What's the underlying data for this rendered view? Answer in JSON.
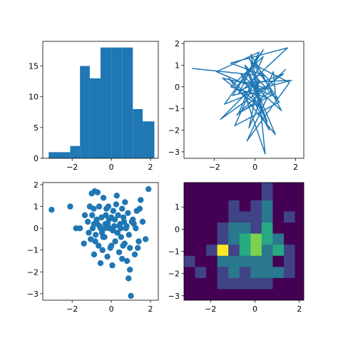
{
  "colors": {
    "series": "#1f77b4",
    "axes": "#000000",
    "background": "#ffffff",
    "colormap": "viridis"
  },
  "chart_data": [
    {
      "type": "bar",
      "subtype": "histogram",
      "bins": [
        {
          "x0": -3.2,
          "x1": -2.1,
          "count": 1
        },
        {
          "x0": -2.1,
          "x1": -1.6,
          "count": 2
        },
        {
          "x0": -1.6,
          "x1": -1.1,
          "count": 15
        },
        {
          "x0": -1.1,
          "x1": -0.55,
          "count": 13
        },
        {
          "x0": -0.55,
          "x1": 0.0,
          "count": 18
        },
        {
          "x0": 0.0,
          "x1": 0.55,
          "count": 18
        },
        {
          "x0": 0.55,
          "x1": 1.1,
          "count": 18
        },
        {
          "x0": 1.1,
          "x1": 1.6,
          "count": 8
        },
        {
          "x0": 1.6,
          "x1": 2.2,
          "count": 6
        }
      ],
      "xlim": [
        -3.5,
        2.4
      ],
      "ylim": [
        0,
        19
      ],
      "xticks": [
        -2,
        0,
        2
      ],
      "yticks": [
        0,
        5,
        10,
        15
      ]
    },
    {
      "type": "line",
      "x": [
        -3.1,
        0.5,
        -1.2,
        1.6,
        -0.8,
        0.2,
        -1.9,
        1.1,
        -0.3,
        0.9,
        -1.5,
        0.4,
        -0.6,
        1.8,
        -1.1,
        0.0,
        1.3,
        -0.7,
        0.6,
        -0.4,
        1.0,
        -1.3,
        0.3,
        -0.2,
        0.8,
        -0.9,
        1.5,
        -0.1,
        0.7,
        -0.5,
        1.2,
        -1.0,
        0.1,
        0.5,
        -0.6,
        1.4,
        -1.7,
        0.2,
        -0.3,
        0.9,
        1.0,
        -0.8,
        0.4,
        -1.2,
        0.6,
        -0.4,
        1.7,
        -0.2,
        0.3,
        -1.6,
        0.8
      ],
      "y": [
        0.85,
        0.5,
        1.1,
        1.8,
        -0.3,
        1.6,
        0.7,
        -0.5,
        1.3,
        0.1,
        -0.8,
        1.7,
        0.2,
        0.3,
        -0.4,
        1.2,
        -1.1,
        0.6,
        -1.6,
        0.9,
        -2.2,
        0.4,
        -0.9,
        1.5,
        -0.2,
        -1.3,
        0.8,
        -0.6,
        -2.0,
        1.0,
        -0.7,
        -1.8,
        0.5,
        -3.1,
        -0.1,
        0.6,
        -1.5,
        0.3,
        -1.9,
        0.7,
        -0.3,
        -1.2,
        1.4,
        0.0,
        -0.5,
        -2.5,
        0.2,
        1.1,
        -1.0,
        0.4,
        -0.1
      ],
      "xlim": [
        -3.5,
        2.4
      ],
      "ylim": [
        -3.3,
        2.1
      ],
      "xticks": [
        -2,
        0,
        2
      ],
      "yticks": [
        -3,
        -2,
        -1,
        0,
        1,
        2
      ]
    },
    {
      "type": "scatter",
      "x": [
        -3.05,
        -2.1,
        -1.8,
        -1.6,
        -1.4,
        -1.35,
        -1.2,
        -1.15,
        -1.1,
        -1.05,
        -1.0,
        -0.95,
        -0.9,
        -0.88,
        -0.85,
        -0.8,
        -0.75,
        -0.7,
        -0.65,
        -0.6,
        -0.55,
        -0.5,
        -0.45,
        -0.4,
        -0.35,
        -0.3,
        -0.25,
        -0.2,
        -0.15,
        -0.1,
        -0.05,
        0.0,
        0.05,
        0.1,
        0.15,
        0.2,
        0.25,
        0.3,
        0.35,
        0.4,
        0.45,
        0.5,
        0.55,
        0.6,
        0.65,
        0.7,
        0.75,
        0.8,
        0.85,
        0.9,
        0.95,
        1.0,
        1.1,
        1.2,
        1.3,
        1.4,
        1.5,
        1.6,
        1.75,
        1.9,
        -0.98,
        -0.82,
        -0.62,
        -0.48,
        -0.28,
        -0.12,
        0.08,
        0.28,
        0.48,
        0.68,
        0.88,
        1.05,
        1.25,
        1.45,
        -0.72,
        -0.42,
        -0.18,
        0.18,
        0.42,
        0.62,
        0.78,
        1.15,
        0.32,
        -0.55,
        0.0,
        0.95,
        -0.88,
        0.55,
        1.35,
        -0.32
      ],
      "y": [
        0.85,
        1.0,
        0.0,
        0.0,
        -0.7,
        0.6,
        0.3,
        -0.2,
        1.0,
        -0.5,
        1.6,
        0.0,
        0.9,
        -1.2,
        1.7,
        -0.3,
        0.4,
        1.65,
        -0.8,
        0.1,
        -1.6,
        0.5,
        -1.0,
        1.4,
        -0.4,
        0.2,
        0.9,
        -1.3,
        1.0,
        0.0,
        -0.9,
        0.5,
        -1.7,
        0.8,
        0.1,
        -0.6,
        1.1,
        -0.2,
        0.6,
        -1.1,
        0.2,
        -0.4,
        0.9,
        -0.8,
        0.3,
        1.2,
        0.0,
        -1.5,
        0.7,
        -0.3,
        -0.9,
        -3.1,
        0.4,
        -1.2,
        0.8,
        -0.6,
        1.3,
        0.3,
        -0.5,
        1.8,
        0.6,
        -0.6,
        1.0,
        -0.2,
        0.6,
        0.4,
        -0.1,
        1.5,
        0.0,
        -0.7,
        -2.3,
        0.3,
        0.0,
        0.9,
        0.2,
        -0.4,
        0.2,
        0.4,
        0.1,
        0.5,
        0.1,
        0.2,
        -0.2,
        0.0,
        -0.8,
        -1.9,
        0.2,
        -1.4,
        -0.9,
        0.0
      ],
      "xlim": [
        -3.5,
        2.4
      ],
      "ylim": [
        -3.3,
        2.1
      ],
      "xticks": [
        -2,
        0,
        2
      ],
      "yticks": [
        -3,
        -2,
        -1,
        0,
        1,
        2
      ]
    },
    {
      "type": "heatmap",
      "colormap": "viridis",
      "x_edges": [
        -3.2,
        -2.7,
        -2.2,
        -1.7,
        -1.2,
        -0.7,
        -0.2,
        0.3,
        0.8,
        1.3,
        1.8,
        2.2
      ],
      "y_edges": [
        -3.2,
        -2.7,
        -2.2,
        -1.7,
        -1.2,
        -0.7,
        -0.2,
        0.3,
        0.8,
        1.3,
        1.8,
        2.1
      ],
      "counts": [
        [
          0,
          0,
          0,
          0,
          0,
          0,
          0,
          1,
          0,
          0,
          0
        ],
        [
          0,
          0,
          0,
          0,
          0,
          0,
          0,
          1,
          0,
          0,
          0
        ],
        [
          0,
          0,
          0,
          0,
          1,
          0,
          1,
          2,
          0,
          0,
          0
        ],
        [
          0,
          0,
          0,
          0,
          1,
          1,
          1,
          2,
          0,
          1,
          0
        ],
        [
          0,
          0,
          0,
          1,
          2,
          2,
          1,
          3,
          0,
          0,
          0
        ],
        [
          0,
          0,
          0,
          1,
          2,
          3,
          4,
          3,
          2,
          0,
          0
        ],
        [
          0,
          0,
          1,
          5,
          1,
          3,
          4,
          2,
          3,
          1,
          0
        ],
        [
          1,
          0,
          0,
          2,
          2,
          2,
          2,
          2,
          0,
          1,
          0
        ],
        [
          0,
          1,
          0,
          1,
          2,
          1,
          2,
          2,
          2,
          1,
          0
        ],
        [
          0,
          0,
          0,
          1,
          1,
          1,
          1,
          1,
          0,
          0,
          0
        ],
        [
          0,
          0,
          0,
          0,
          0,
          0,
          0,
          0,
          0,
          0,
          0
        ]
      ],
      "vmax": 5,
      "xlim": [
        -3.2,
        2.2
      ],
      "ylim": [
        -3.2,
        2.1
      ],
      "xticks": [
        -2,
        0,
        2
      ],
      "yticks": [
        -3,
        -2,
        -1,
        0,
        1
      ]
    }
  ]
}
